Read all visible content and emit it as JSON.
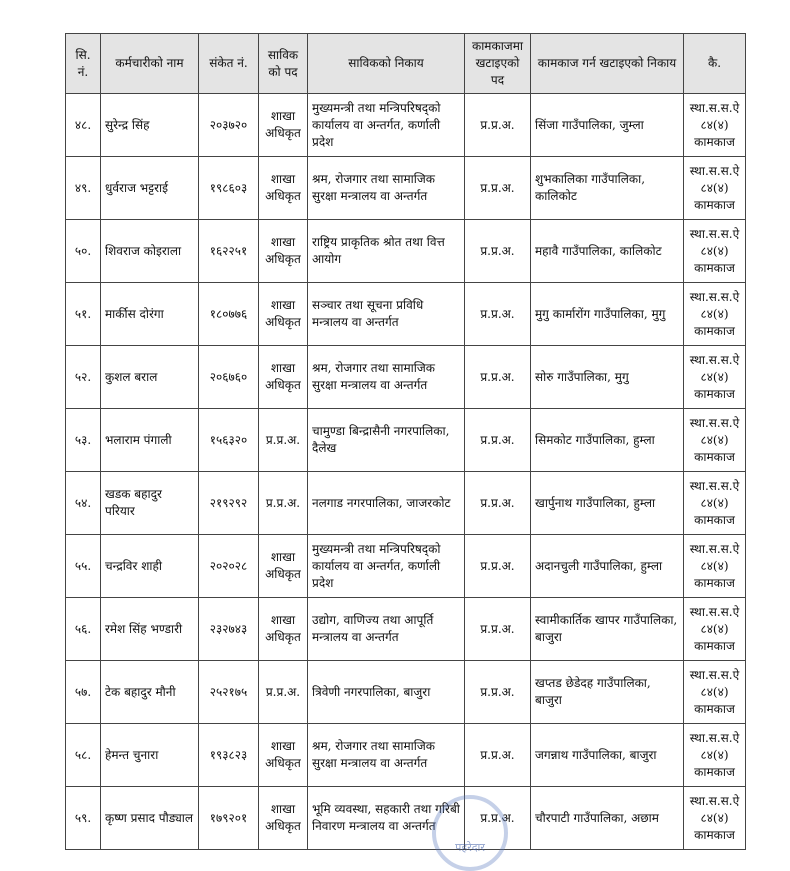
{
  "table": {
    "headers": [
      "सि. नं.",
      "कर्मचारीको नाम",
      "संकेत नं.",
      "साविकको पद",
      "साविकको निकाय",
      "कामकाजमा खटाइएको पद",
      "कामकाज गर्न खटाइएको निकाय",
      "कै."
    ],
    "rows": [
      [
        "४८.",
        "सुरेन्द्र सिंह",
        "२०३७२०",
        "शाखा अधिकृत",
        "मुख्यमन्त्री तथा मन्त्रिपरिषद्को कार्यालय वा अन्तर्गत, कर्णाली प्रदेश",
        "प्र.प्र.अ.",
        "सिंजा गाउँपालिका, जुम्ला",
        "स्था.स.स.ऐ ८४(४) कामकाज"
      ],
      [
        "४९.",
        "धुर्वराज भट्टराई",
        "१९८६०३",
        "शाखा अधिकृत",
        "श्रम, रोजगार तथा सामाजिक सुरक्षा मन्त्रालय वा अन्तर्गत",
        "प्र.प्र.अ.",
        "शुभकालिका गाउँपालिका, कालिकोट",
        "स्था.स.स.ऐ ८४(४) कामकाज"
      ],
      [
        "५०.",
        "शिवराज कोइराला",
        "१६२२५१",
        "शाखा अधिकृत",
        "राष्ट्रिय प्राकृतिक श्रोत तथा वित्त आयोग",
        "प्र.प्र.अ.",
        "महावै गाउँपालिका, कालिकोट",
        "स्था.स.स.ऐ ८४(४) कामकाज"
      ],
      [
        "५१.",
        "मार्कीस दोरंगा",
        "१८०७७६",
        "शाखा अधिकृत",
        "सञ्चार तथा सूचना प्रविधि मन्त्रालय वा अन्तर्गत",
        "प्र.प्र.अ.",
        "मुगु कार्मारोंग गाउँपालिका, मुगु",
        "स्था.स.स.ऐ ८४(४) कामकाज"
      ],
      [
        "५२.",
        "कुशल बराल",
        "२०६७६०",
        "शाखा अधिकृत",
        "श्रम, रोजगार तथा सामाजिक सुरक्षा मन्त्रालय वा अन्तर्गत",
        "प्र.प्र.अ.",
        "सोरु गाउँपालिका, मुगु",
        "स्था.स.स.ऐ ८४(४) कामकाज"
      ],
      [
        "५३.",
        "भलाराम पंगाली",
        "१५६३२०",
        "प्र.प्र.अ.",
        "चामुण्डा बिन्द्रासैनी नगरपालिका, दैलेख",
        "प्र.प्र.अ.",
        "सिमकोट गाउँपालिका, हुम्ला",
        "स्था.स.स.ऐ ८४(४) कामकाज"
      ],
      [
        "५४.",
        "खडक बहादुर परियार",
        "२१९२९२",
        "प्र.प्र.अ.",
        "नलगाड नगरपालिका, जाजरकोट",
        "प्र.प्र.अ.",
        "खार्पुनाथ गाउँपालिका, हुम्ला",
        "स्था.स.स.ऐ ८४(४) कामकाज"
      ],
      [
        "५५.",
        "चन्द्रविर शाही",
        "२०२०२८",
        "शाखा अधिकृत",
        "मुख्यमन्त्री तथा मन्त्रिपरिषद्को कार्यालय वा अन्तर्गत, कर्णाली प्रदेश",
        "प्र.प्र.अ.",
        "अदानचुली गाउँपालिका, हुम्ला",
        "स्था.स.स.ऐ ८४(४) कामकाज"
      ],
      [
        "५६.",
        "रमेश सिंह भण्डारी",
        "२३२७४३",
        "शाखा अधिकृत",
        "उद्योग, वाणिज्य तथा आपूर्ति मन्त्रालय वा अन्तर्गत",
        "प्र.प्र.अ.",
        "स्वामीकार्तिक खापर गाउँपालिका, बाजुरा",
        "स्था.स.स.ऐ ८४(४) कामकाज"
      ],
      [
        "५७.",
        "टेक बहादुर मौनी",
        "२५२१७५",
        "प्र.प्र.अ.",
        "त्रिवेणी नगरपालिका, बाजुरा",
        "प्र.प्र.अ.",
        "खप्तड छेडेदह गाउँपालिका, बाजुरा",
        "स्था.स.स.ऐ ८४(४) कामकाज"
      ],
      [
        "५८.",
        "हेमन्त चुनारा",
        "१९३८२३",
        "शाखा अधिकृत",
        "श्रम, रोजगार तथा सामाजिक सुरक्षा मन्त्रालय वा अन्तर्गत",
        "प्र.प्र.अ.",
        "जगन्नाथ गाउँपालिका, बाजुरा",
        "स्था.स.स.ऐ ८४(४) कामकाज"
      ],
      [
        "५९.",
        "कृष्ण प्रसाद पौड्याल",
        "१७९२०१",
        "शाखा अधिकृत",
        "भूमि व्यवस्था, सहकारी तथा गरिबी निवारण मन्त्रालय वा अन्तर्गत",
        "प्र.प्र.अ.",
        "चौरपाटी गाउँपालिका, अछाम",
        "स्था.स.स.ऐ ८४(४) कामकाज"
      ]
    ]
  },
  "watermark": {
    "text": "पहरेदार"
  }
}
